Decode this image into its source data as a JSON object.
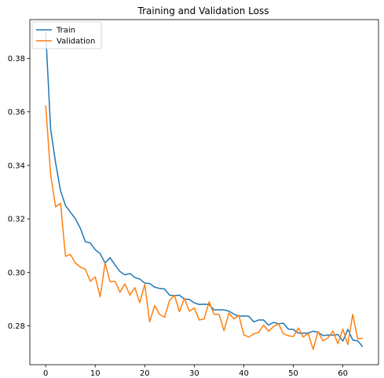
{
  "chart_data": {
    "type": "line",
    "title": "Training and Validation Loss",
    "xlabel": "",
    "ylabel": "",
    "xlim": [
      -3.2,
      67.2
    ],
    "ylim": [
      0.2655,
      0.3945
    ],
    "xticks": [
      0,
      10,
      20,
      30,
      40,
      50,
      60
    ],
    "yticks": [
      0.28,
      0.3,
      0.32,
      0.34,
      0.36,
      0.38
    ],
    "ytick_labels": [
      "0.28",
      "0.30",
      "0.32",
      "0.34",
      "0.36",
      "0.38"
    ],
    "grid": false,
    "legend_position": "top-left",
    "x": [
      0,
      1,
      2,
      3,
      4,
      5,
      6,
      7,
      8,
      9,
      10,
      11,
      12,
      13,
      14,
      15,
      16,
      17,
      18,
      19,
      20,
      21,
      22,
      23,
      24,
      25,
      26,
      27,
      28,
      29,
      30,
      31,
      32,
      33,
      34,
      35,
      36,
      37,
      38,
      39,
      40,
      41,
      42,
      43,
      44,
      45,
      46,
      47,
      48,
      49,
      50,
      51,
      52,
      53,
      54,
      55,
      56,
      57,
      58,
      59,
      60,
      61,
      62,
      63,
      64
    ],
    "series": [
      {
        "name": "Train",
        "color": "#1f77b4",
        "values": [
          0.39,
          0.3535,
          0.341,
          0.3305,
          0.325,
          0.3225,
          0.32,
          0.3165,
          0.3115,
          0.311,
          0.3085,
          0.307,
          0.3035,
          0.3055,
          0.3028,
          0.3003,
          0.2991,
          0.2996,
          0.2981,
          0.2975,
          0.296,
          0.2958,
          0.2945,
          0.294,
          0.2938,
          0.2915,
          0.2913,
          0.2915,
          0.29,
          0.2899,
          0.2886,
          0.288,
          0.2881,
          0.288,
          0.286,
          0.286,
          0.286,
          0.2855,
          0.2844,
          0.2836,
          0.2837,
          0.2836,
          0.2815,
          0.2822,
          0.2822,
          0.2803,
          0.2813,
          0.2808,
          0.281,
          0.2788,
          0.2787,
          0.2773,
          0.2773,
          0.2773,
          0.278,
          0.2776,
          0.2764,
          0.2766,
          0.2765,
          0.2768,
          0.2743,
          0.2787,
          0.2747,
          0.2744,
          0.2722
        ]
      },
      {
        "name": "Validation",
        "color": "#ff7f0e",
        "values": [
          0.3625,
          0.3365,
          0.3245,
          0.3258,
          0.306,
          0.3067,
          0.3035,
          0.302,
          0.3012,
          0.2967,
          0.2983,
          0.2909,
          0.3035,
          0.2965,
          0.2967,
          0.2926,
          0.2957,
          0.2915,
          0.2943,
          0.2887,
          0.2955,
          0.2815,
          0.2876,
          0.2843,
          0.2832,
          0.2895,
          0.2914,
          0.2853,
          0.2903,
          0.2855,
          0.2867,
          0.2822,
          0.2826,
          0.289,
          0.2843,
          0.2843,
          0.2782,
          0.2848,
          0.2826,
          0.284,
          0.2767,
          0.2758,
          0.277,
          0.2776,
          0.2803,
          0.278,
          0.2797,
          0.2808,
          0.277,
          0.2763,
          0.276,
          0.2792,
          0.2758,
          0.2772,
          0.2712,
          0.2779,
          0.2744,
          0.2755,
          0.2781,
          0.2733,
          0.2788,
          0.273,
          0.2843,
          0.2752,
          0.2754
        ]
      }
    ]
  }
}
